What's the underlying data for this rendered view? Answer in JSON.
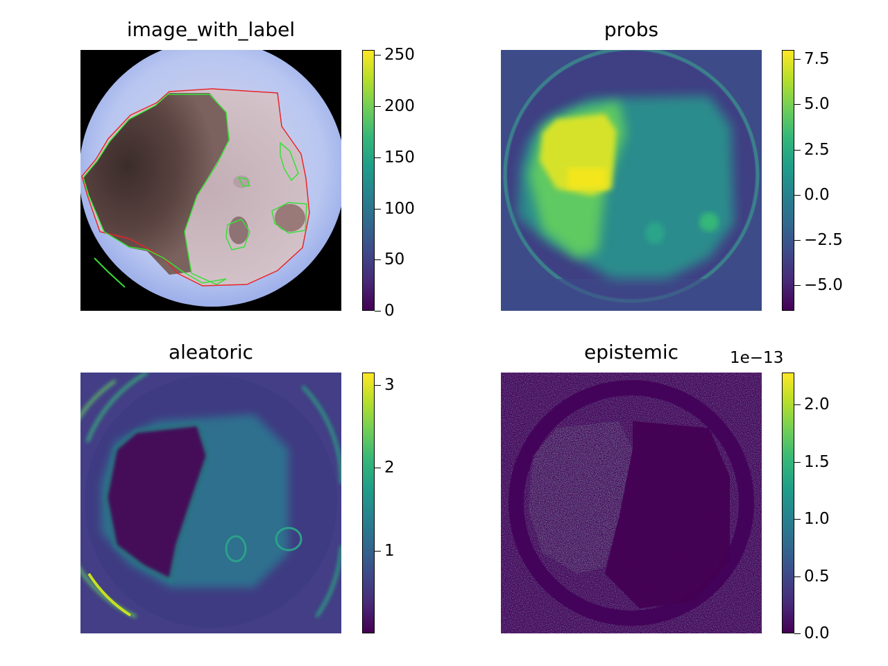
{
  "chart_data": [
    {
      "type": "heatmap",
      "title": "image_with_label",
      "colorbar": {
        "colormap": "viridis",
        "range": [
          0,
          255
        ],
        "ticks": [
          0,
          50,
          100,
          150,
          200,
          250
        ],
        "tick_labels": [
          "0",
          "50",
          "100",
          "150",
          "200",
          "250"
        ]
      },
      "legend": "none",
      "grid": false
    },
    {
      "type": "heatmap",
      "title": "probs",
      "colorbar": {
        "colormap": "viridis",
        "range": [
          -6.4,
          8.0
        ],
        "ticks": [
          -5.0,
          -2.5,
          0.0,
          2.5,
          5.0,
          7.5
        ],
        "tick_labels": [
          "−5.0",
          "−2.5",
          "0.0",
          "2.5",
          "5.0",
          "7.5"
        ]
      },
      "legend": "none",
      "grid": false
    },
    {
      "type": "heatmap",
      "title": "aleatoric",
      "colorbar": {
        "colormap": "viridis",
        "range": [
          0.0,
          3.15
        ],
        "ticks": [
          1,
          2,
          3
        ],
        "tick_labels": [
          "1",
          "2",
          "3"
        ]
      },
      "legend": "none",
      "grid": false
    },
    {
      "type": "heatmap",
      "title": "epistemic",
      "colorbar": {
        "colormap": "viridis",
        "range": [
          0.0,
          2.28
        ],
        "ticks": [
          0.0,
          0.5,
          1.0,
          1.5,
          2.0
        ],
        "tick_labels": [
          "0.0",
          "0.5",
          "1.0",
          "1.5",
          "2.0"
        ],
        "offset_label": "1e−13"
      },
      "legend": "none",
      "grid": false
    }
  ]
}
